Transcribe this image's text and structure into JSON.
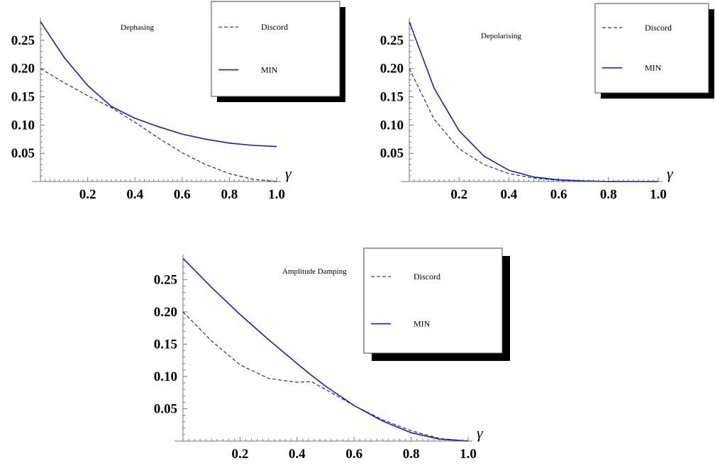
{
  "chart_data": [
    {
      "type": "line",
      "title": "Dephasing",
      "xlabel": "γ",
      "ylabel": "",
      "xlim": [
        0,
        1.0
      ],
      "ylim": [
        0,
        0.28
      ],
      "xticks": [
        "0.2",
        "0.4",
        "0.6",
        "0.8",
        "1.0"
      ],
      "yticks": [
        "0.05",
        "0.10",
        "0.15",
        "0.20",
        "0.25"
      ],
      "legend_position": "top-right",
      "x": [
        0,
        0.1,
        0.2,
        0.3,
        0.4,
        0.5,
        0.6,
        0.7,
        0.8,
        0.9,
        1.0
      ],
      "series": [
        {
          "name": "Discord",
          "style": "dashed",
          "color": "#2a2a7a",
          "values": [
            0.2,
            0.175,
            0.152,
            0.131,
            0.105,
            0.077,
            0.051,
            0.03,
            0.014,
            0.004,
            0.0
          ]
        },
        {
          "name": "MIN",
          "style": "solid",
          "color": "#1f1fa8",
          "values": [
            0.283,
            0.22,
            0.17,
            0.133,
            0.112,
            0.097,
            0.084,
            0.075,
            0.068,
            0.064,
            0.062
          ]
        }
      ]
    },
    {
      "type": "line",
      "title": "Depolarising",
      "xlabel": "γ",
      "ylabel": "",
      "xlim": [
        0,
        1.0
      ],
      "ylim": [
        0,
        0.28
      ],
      "xticks": [
        "0.2",
        "0.4",
        "0.6",
        "0.8",
        "1.0"
      ],
      "yticks": [
        "0.05",
        "0.10",
        "0.15",
        "0.20",
        "0.25"
      ],
      "legend_position": "top-right",
      "x": [
        0,
        0.1,
        0.2,
        0.3,
        0.4,
        0.5,
        0.6,
        0.7,
        0.8,
        0.9,
        1.0
      ],
      "series": [
        {
          "name": "Discord",
          "style": "dashed",
          "color": "#2a2a7a",
          "values": [
            0.2,
            0.11,
            0.058,
            0.03,
            0.014,
            0.006,
            0.002,
            0.001,
            0.0,
            0.0,
            0.0
          ]
        },
        {
          "name": "MIN",
          "style": "solid",
          "color": "#1f1fa8",
          "values": [
            0.283,
            0.165,
            0.09,
            0.045,
            0.02,
            0.008,
            0.003,
            0.001,
            0.0,
            0.0,
            0.0
          ]
        }
      ]
    },
    {
      "type": "line",
      "title": "Amplitude Damping",
      "xlabel": "γ",
      "ylabel": "",
      "xlim": [
        0,
        1.0
      ],
      "ylim": [
        0,
        0.28
      ],
      "xticks": [
        "0.2",
        "0.4",
        "0.6",
        "0.8",
        "1.0"
      ],
      "yticks": [
        "0.05",
        "0.10",
        "0.15",
        "0.20",
        "0.25"
      ],
      "legend_position": "top-right",
      "x": [
        0,
        0.1,
        0.2,
        0.3,
        0.4,
        0.45,
        0.5,
        0.6,
        0.7,
        0.8,
        0.9,
        1.0
      ],
      "series": [
        {
          "name": "Discord",
          "style": "dashed",
          "color": "#2a2a7a",
          "values": [
            0.2,
            0.155,
            0.118,
            0.097,
            0.091,
            0.092,
            0.08,
            0.055,
            0.033,
            0.016,
            0.004,
            0.0
          ]
        },
        {
          "name": "MIN",
          "style": "solid",
          "color": "#1f1fa8",
          "values": [
            0.283,
            0.238,
            0.196,
            0.157,
            0.12,
            0.102,
            0.085,
            0.055,
            0.031,
            0.013,
            0.003,
            0.0
          ]
        }
      ]
    }
  ]
}
